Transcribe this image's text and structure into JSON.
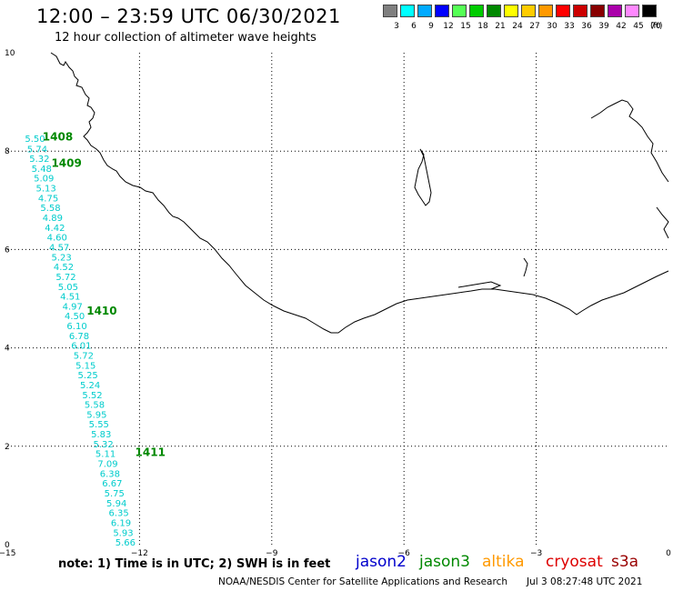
{
  "title": "12:00 – 23:59 UTC 06/30/2021",
  "subtitle": "12 hour collection of altimeter wave heights",
  "colorbar": {
    "unit": "(ft)",
    "labels": [
      "3",
      "6",
      "9",
      "12",
      "15",
      "18",
      "21",
      "24",
      "27",
      "30",
      "33",
      "36",
      "39",
      "42",
      "45",
      "70"
    ],
    "colors": [
      "#7f7f7f",
      "#00ffff",
      "#00aaff",
      "#0000ff",
      "#55ff55",
      "#00cc00",
      "#008800",
      "#ffff00",
      "#ffcc00",
      "#ff9900",
      "#ff0000",
      "#cc0000",
      "#880000",
      "#aa00aa",
      "#ff88ff",
      "#000000"
    ]
  },
  "map": {
    "lon_ticks": [
      "−15",
      "−12",
      "−9",
      "−6",
      "−3",
      "0"
    ],
    "lat_ticks": [
      "0",
      "2",
      "4",
      "6",
      "8",
      "10"
    ],
    "lon_range": [
      -15,
      0
    ],
    "lat_range": [
      0,
      10
    ],
    "track": {
      "satellite": "jason3",
      "color": "#00cccc",
      "points": [
        {
          "lon": -14.6,
          "lat": 8.19,
          "swh": "5.50"
        },
        {
          "lon": -14.55,
          "lat": 7.98,
          "swh": "5.74"
        },
        {
          "lon": -14.5,
          "lat": 7.78,
          "swh": "5.32"
        },
        {
          "lon": -14.45,
          "lat": 7.58,
          "swh": "5.48"
        },
        {
          "lon": -14.4,
          "lat": 7.38,
          "swh": "5.09"
        },
        {
          "lon": -14.35,
          "lat": 7.18,
          "swh": "5.13"
        },
        {
          "lon": -14.3,
          "lat": 6.98,
          "swh": "4.75"
        },
        {
          "lon": -14.25,
          "lat": 6.78,
          "swh": "5.58"
        },
        {
          "lon": -14.2,
          "lat": 6.58,
          "swh": "4.89"
        },
        {
          "lon": -14.15,
          "lat": 6.38,
          "swh": "4.42"
        },
        {
          "lon": -14.1,
          "lat": 6.18,
          "swh": "4.60"
        },
        {
          "lon": -14.05,
          "lat": 5.98,
          "swh": "4.57"
        },
        {
          "lon": -14.0,
          "lat": 5.78,
          "swh": "5.23"
        },
        {
          "lon": -13.95,
          "lat": 5.58,
          "swh": "4.52"
        },
        {
          "lon": -13.9,
          "lat": 5.38,
          "swh": "5.72"
        },
        {
          "lon": -13.85,
          "lat": 5.18,
          "swh": "5.05"
        },
        {
          "lon": -13.8,
          "lat": 4.98,
          "swh": "4.51"
        },
        {
          "lon": -13.75,
          "lat": 4.78,
          "swh": "4.97"
        },
        {
          "lon": -13.7,
          "lat": 4.58,
          "swh": "4.50"
        },
        {
          "lon": -13.65,
          "lat": 4.38,
          "swh": "6.10"
        },
        {
          "lon": -13.6,
          "lat": 4.18,
          "swh": "6.78"
        },
        {
          "lon": -13.55,
          "lat": 3.98,
          "swh": "6.01"
        },
        {
          "lon": -13.5,
          "lat": 3.78,
          "swh": "5.72"
        },
        {
          "lon": -13.45,
          "lat": 3.58,
          "swh": "5.15"
        },
        {
          "lon": -13.4,
          "lat": 3.38,
          "swh": "5.25"
        },
        {
          "lon": -13.35,
          "lat": 3.18,
          "swh": "5.24"
        },
        {
          "lon": -13.3,
          "lat": 2.98,
          "swh": "5.52"
        },
        {
          "lon": -13.25,
          "lat": 2.78,
          "swh": "5.58"
        },
        {
          "lon": -13.2,
          "lat": 2.58,
          "swh": "5.95"
        },
        {
          "lon": -13.15,
          "lat": 2.38,
          "swh": "5.55"
        },
        {
          "lon": -13.1,
          "lat": 2.18,
          "swh": "5.83"
        },
        {
          "lon": -13.05,
          "lat": 1.98,
          "swh": "5.32"
        },
        {
          "lon": -13.0,
          "lat": 1.78,
          "swh": "5.11"
        },
        {
          "lon": -12.95,
          "lat": 1.58,
          "swh": "7.09"
        },
        {
          "lon": -12.9,
          "lat": 1.38,
          "swh": "6.38"
        },
        {
          "lon": -12.85,
          "lat": 1.18,
          "swh": "6.67"
        },
        {
          "lon": -12.8,
          "lat": 0.98,
          "swh": "5.75"
        },
        {
          "lon": -12.75,
          "lat": 0.78,
          "swh": "5.94"
        },
        {
          "lon": -12.7,
          "lat": 0.58,
          "swh": "6.35"
        },
        {
          "lon": -12.65,
          "lat": 0.38,
          "swh": "6.19"
        },
        {
          "lon": -12.6,
          "lat": 0.18,
          "swh": "5.93"
        },
        {
          "lon": -12.55,
          "lat": -0.02,
          "swh": "5.66"
        }
      ]
    },
    "time_labels": [
      {
        "text": "1408",
        "lon": -14.2,
        "lat": 8.22
      },
      {
        "text": "1409",
        "lon": -14.0,
        "lat": 7.68
      },
      {
        "text": "1410",
        "lon": -13.2,
        "lat": 4.68
      },
      {
        "text": "1411",
        "lon": -12.1,
        "lat": 1.8
      }
    ]
  },
  "note": "note:  1) Time is in UTC;  2) SWH is in feet",
  "legend": [
    {
      "name": "jason2",
      "color": "#0000cc"
    },
    {
      "name": "jason3",
      "color": "#008800"
    },
    {
      "name": "altika",
      "color": "#ff9900"
    },
    {
      "name": "cryosat",
      "color": "#dd0000"
    },
    {
      "name": "s3a",
      "color": "#990000"
    }
  ],
  "credit": "NOAA/NESDIS Center for Satellite Applications and Research",
  "timestamp": "Jul  3 08:27:48 UTC 2021"
}
